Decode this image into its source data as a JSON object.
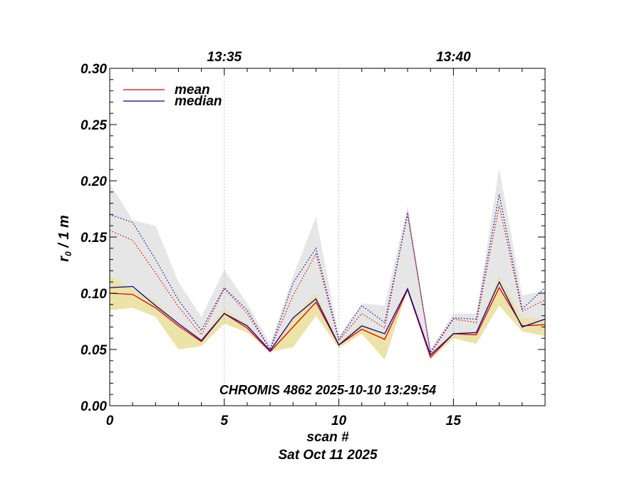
{
  "chart_data": {
    "type": "line",
    "title": "CHROMIS 4862 2025-10-10 13:29:54",
    "xlabel": "scan #",
    "xlabel2": "Sat Oct 11 2025",
    "ylabel_main": "r",
    "ylabel_sub": "0",
    "ylabel_rest": " / 1 m",
    "xlim": [
      0,
      19
    ],
    "ylim": [
      0,
      0.3
    ],
    "xticks": [
      0,
      5,
      10,
      15
    ],
    "xtick_labels": [
      "0",
      "5",
      "10",
      "15"
    ],
    "yticks": [
      0,
      0.05,
      0.1,
      0.15,
      0.2,
      0.25,
      0.3
    ],
    "ytick_labels": [
      "0.00",
      "0.05",
      "0.10",
      "0.15",
      "0.20",
      "0.25",
      "0.30"
    ],
    "top_axis": [
      {
        "x": 5,
        "label": "13:35"
      },
      {
        "x": 15,
        "label": "13:40"
      }
    ],
    "vertical_grid_x": [
      5,
      10,
      15
    ],
    "legend": [
      {
        "name": "mean",
        "color": "#e00000"
      },
      {
        "name": "median",
        "color": "#00009e"
      }
    ],
    "x": [
      0,
      1,
      2,
      3,
      4,
      5,
      6,
      7,
      8,
      9,
      10,
      11,
      12,
      13,
      14,
      15,
      16,
      17,
      18,
      19
    ],
    "series": [
      {
        "name": "mean",
        "style": "solid",
        "color": "#e00000",
        "values": [
          0.1,
          0.099,
          0.087,
          0.071,
          0.057,
          0.082,
          0.069,
          0.048,
          0.07,
          0.092,
          0.054,
          0.068,
          0.059,
          0.103,
          0.043,
          0.064,
          0.063,
          0.105,
          0.071,
          0.072
        ]
      },
      {
        "name": "median",
        "style": "solid",
        "color": "#00009e",
        "values": [
          0.105,
          0.106,
          0.089,
          0.073,
          0.058,
          0.082,
          0.071,
          0.049,
          0.078,
          0.095,
          0.054,
          0.071,
          0.064,
          0.104,
          0.045,
          0.064,
          0.065,
          0.11,
          0.07,
          0.077
        ]
      },
      {
        "name": "mean (upper)",
        "style": "dotted",
        "color": "#e00000",
        "values": [
          0.156,
          0.147,
          0.118,
          0.088,
          0.063,
          0.104,
          0.082,
          0.05,
          0.098,
          0.135,
          0.058,
          0.082,
          0.069,
          0.172,
          0.046,
          0.077,
          0.074,
          0.178,
          0.084,
          0.094
        ]
      },
      {
        "name": "median (upper)",
        "style": "dotted",
        "color": "#00009e",
        "values": [
          0.17,
          0.163,
          0.13,
          0.094,
          0.067,
          0.105,
          0.085,
          0.05,
          0.109,
          0.14,
          0.059,
          0.089,
          0.074,
          0.17,
          0.048,
          0.078,
          0.077,
          0.188,
          0.086,
          0.105
        ]
      }
    ],
    "bands": [
      {
        "name": "upper range",
        "color": "#e6e6e6",
        "upper": [
          0.198,
          0.165,
          0.16,
          0.11,
          0.079,
          0.121,
          0.091,
          0.055,
          0.115,
          0.168,
          0.062,
          0.091,
          0.089,
          0.178,
          0.05,
          0.082,
          0.082,
          0.211,
          0.098,
          0.102
        ],
        "lower": [
          0.109,
          0.105,
          0.09,
          0.074,
          0.06,
          0.082,
          0.071,
          0.049,
          0.078,
          0.095,
          0.055,
          0.07,
          0.063,
          0.104,
          0.045,
          0.064,
          0.065,
          0.11,
          0.07,
          0.077
        ]
      },
      {
        "name": "lower range",
        "color": "#ebe3a8",
        "upper": [
          0.115,
          0.104,
          0.093,
          0.074,
          0.06,
          0.086,
          0.072,
          0.049,
          0.079,
          0.1,
          0.057,
          0.073,
          0.063,
          0.106,
          0.047,
          0.065,
          0.066,
          0.115,
          0.078,
          0.077
        ],
        "lower": [
          0.085,
          0.087,
          0.079,
          0.05,
          0.053,
          0.073,
          0.065,
          0.048,
          0.052,
          0.08,
          0.051,
          0.064,
          0.041,
          0.103,
          0.041,
          0.06,
          0.055,
          0.089,
          0.066,
          0.062
        ]
      }
    ]
  }
}
